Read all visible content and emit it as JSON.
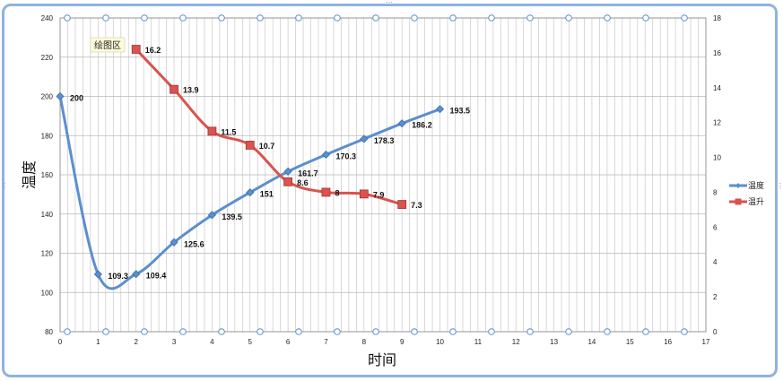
{
  "chart_data": {
    "type": "line",
    "title": "",
    "xlabel": "时间",
    "ylabel": "温度",
    "xlim": [
      0,
      17
    ],
    "ylim": [
      80,
      240
    ],
    "y2lim": [
      0,
      18
    ],
    "x_ticks": [
      "0",
      "1",
      "2",
      "3",
      "4",
      "5",
      "6",
      "7",
      "8",
      "9",
      "10",
      "11",
      "12",
      "13",
      "14",
      "15",
      "16",
      "17"
    ],
    "y_ticks": [
      "80",
      "100",
      "120",
      "140",
      "160",
      "180",
      "200",
      "220",
      "240"
    ],
    "y2_ticks": [
      "0",
      "2",
      "4",
      "6",
      "8",
      "10",
      "12",
      "14",
      "16",
      "18"
    ],
    "grid": true,
    "legend_position": "right",
    "series": [
      {
        "name": "温度",
        "axis": "left",
        "color": "#5b8fcd",
        "marker": "diamond",
        "x": [
          0,
          1,
          2,
          3,
          4,
          5,
          6,
          7,
          8,
          9,
          10
        ],
        "values": [
          200,
          109.3,
          109.4,
          125.6,
          139.5,
          151,
          161.7,
          170.3,
          178.3,
          186.2,
          193.5
        ],
        "labels": [
          "200",
          "109.3",
          "109.4",
          "125.6",
          "139.5",
          "151",
          "161.7",
          "170.3",
          "178.3",
          "186.2",
          "193.5"
        ]
      },
      {
        "name": "温升",
        "axis": "right",
        "color": "#d9534f",
        "marker": "square",
        "x": [
          2,
          3,
          4,
          5,
          6,
          7,
          8,
          9
        ],
        "values": [
          16.2,
          13.9,
          11.5,
          10.7,
          8.6,
          8,
          7.9,
          7.3
        ],
        "labels": [
          "16.2",
          "13.9",
          "11.5",
          "10.7",
          "8.6",
          "8",
          "7.9",
          "7.3"
        ]
      }
    ],
    "tooltip": "绘图区"
  }
}
